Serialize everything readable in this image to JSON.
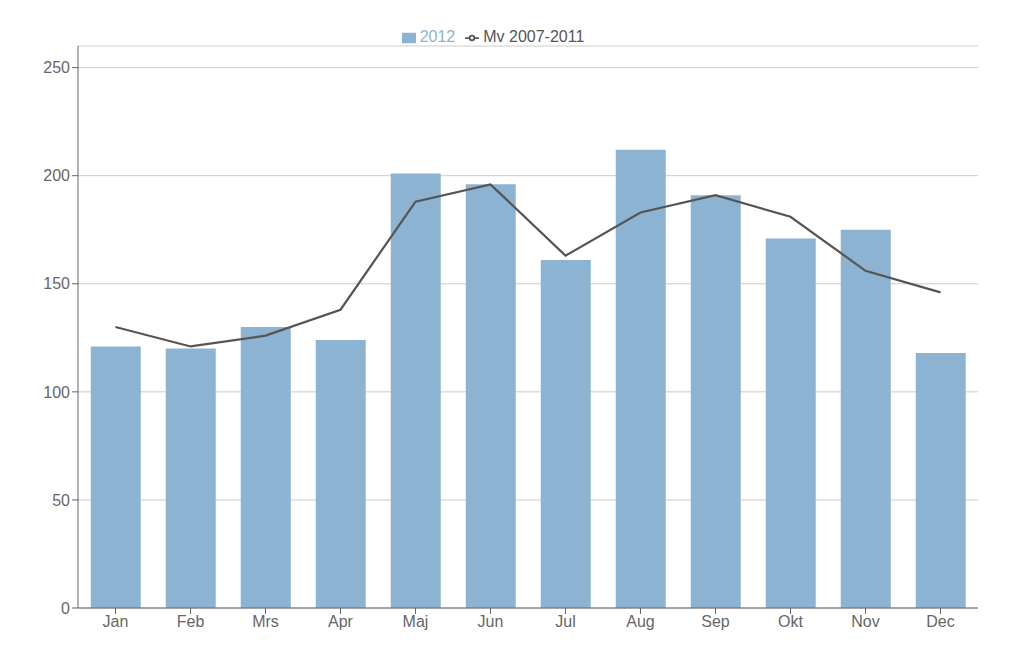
{
  "chart_data": {
    "type": "bar",
    "categories": [
      "Jan",
      "Feb",
      "Mrs",
      "Apr",
      "Maj",
      "Jun",
      "Jul",
      "Aug",
      "Sep",
      "Okt",
      "Nov",
      "Dec"
    ],
    "series": [
      {
        "name": "2012",
        "type": "bar",
        "color": "#8cb4d2",
        "values": [
          121,
          120,
          130,
          124,
          201,
          196,
          161,
          212,
          191,
          171,
          175,
          118
        ]
      },
      {
        "name": "Mv 2007-2011",
        "type": "line",
        "color": "#555555",
        "values": [
          130,
          121,
          126,
          138,
          188,
          196,
          163,
          183,
          191,
          181,
          156,
          146
        ]
      }
    ],
    "ylim": [
      0,
      260
    ],
    "yticks": [
      0,
      50,
      100,
      150,
      200,
      250
    ],
    "grid": true,
    "legend": "top"
  }
}
